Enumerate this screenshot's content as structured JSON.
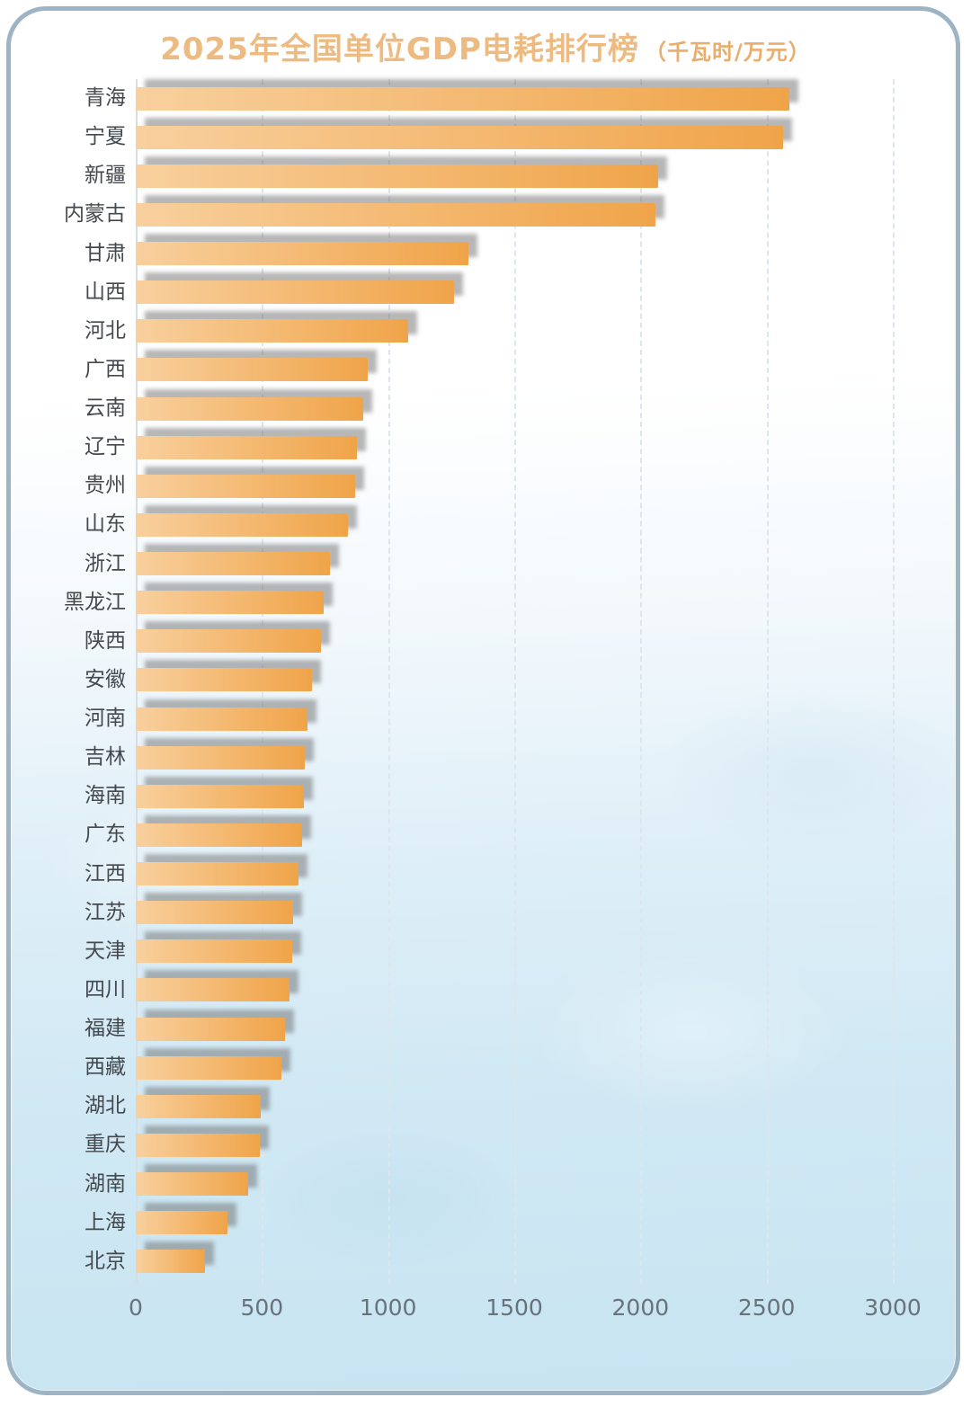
{
  "header": {
    "title": "2025年全国单位GDP电耗排行榜",
    "unit_suffix": "（千瓦时/万元）"
  },
  "chart_data": {
    "type": "bar",
    "orientation": "horizontal",
    "title": "2025年全国单位GDP电耗排行榜",
    "unit_label": "千瓦时/万元",
    "categories": [
      "青海",
      "宁夏",
      "新疆",
      "内蒙古",
      "甘肃",
      "山西",
      "河北",
      "广西",
      "云南",
      "辽宁",
      "贵州",
      "山东",
      "浙江",
      "黑龙江",
      "陕西",
      "安徽",
      "河南",
      "吉林",
      "海南",
      "广东",
      "江西",
      "江苏",
      "天津",
      "四川",
      "福建",
      "西藏",
      "湖北",
      "重庆",
      "湖南",
      "上海",
      "北京"
    ],
    "values": [
      2590,
      2565,
      2070,
      2060,
      1320,
      1260,
      1080,
      920,
      900,
      875,
      870,
      840,
      770,
      745,
      735,
      700,
      680,
      670,
      665,
      660,
      645,
      625,
      620,
      610,
      590,
      577,
      495,
      492,
      445,
      365,
      275
    ],
    "xlim": [
      0,
      3000
    ],
    "x_ticks": [
      0,
      500,
      1000,
      1500,
      2000,
      2500,
      3000
    ],
    "grid": "dashed-vertical",
    "legend": "none"
  },
  "colors": {
    "title": "#edbb81",
    "unit": "#e9ad6c",
    "bar_gradient_start": "#f8d09e",
    "bar_gradient_end": "#f0a449",
    "bar_shadow": "rgba(112,112,112,0.5)",
    "category_label": "#45494e",
    "tick_label": "#67727b",
    "gridline": "#dde6ec",
    "card_border": "#9db4c4",
    "background_top": "#ffffff",
    "background_bottom": "#c8e4f1"
  }
}
